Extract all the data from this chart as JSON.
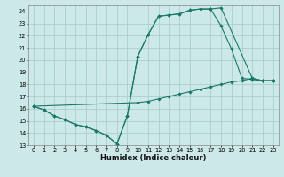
{
  "title": "",
  "xlabel": "Humidex (Indice chaleur)",
  "xlim": [
    -0.5,
    23.5
  ],
  "ylim": [
    13,
    24.5
  ],
  "yticks": [
    13,
    14,
    15,
    16,
    17,
    18,
    19,
    20,
    21,
    22,
    23,
    24
  ],
  "xticks": [
    0,
    1,
    2,
    3,
    4,
    5,
    6,
    7,
    8,
    9,
    10,
    11,
    12,
    13,
    14,
    15,
    16,
    17,
    18,
    19,
    20,
    21,
    22,
    23
  ],
  "background_color": "#cce8e8",
  "grid_color": "#aacece",
  "line_color": "#1a7868",
  "lines": [
    {
      "x": [
        0,
        1,
        2,
        3,
        4,
        5,
        6,
        7,
        8,
        9,
        10,
        11,
        12,
        13,
        14,
        15,
        16,
        17,
        18,
        21,
        22,
        23
      ],
      "y": [
        16.2,
        15.9,
        15.4,
        15.1,
        14.7,
        14.5,
        14.2,
        13.8,
        13.1,
        15.4,
        20.3,
        22.1,
        23.6,
        23.7,
        23.8,
        24.1,
        24.2,
        24.2,
        24.3,
        18.5,
        18.3,
        18.3
      ]
    },
    {
      "x": [
        0,
        1,
        2,
        3,
        4,
        5,
        6,
        7,
        8,
        9,
        10,
        11,
        12,
        13,
        14,
        15,
        16,
        17,
        18,
        19,
        20,
        21,
        22,
        23
      ],
      "y": [
        16.2,
        15.9,
        15.4,
        15.1,
        14.7,
        14.5,
        14.2,
        13.8,
        13.1,
        15.4,
        20.3,
        22.1,
        23.6,
        23.7,
        23.8,
        24.1,
        24.2,
        24.2,
        22.8,
        20.9,
        18.5,
        18.4,
        18.3,
        18.3
      ]
    },
    {
      "x": [
        0,
        10,
        11,
        12,
        13,
        14,
        15,
        16,
        17,
        18,
        19,
        20,
        21,
        22,
        23
      ],
      "y": [
        16.2,
        16.5,
        16.6,
        16.8,
        17.0,
        17.2,
        17.4,
        17.6,
        17.8,
        18.0,
        18.2,
        18.3,
        18.5,
        18.3,
        18.3
      ]
    }
  ]
}
